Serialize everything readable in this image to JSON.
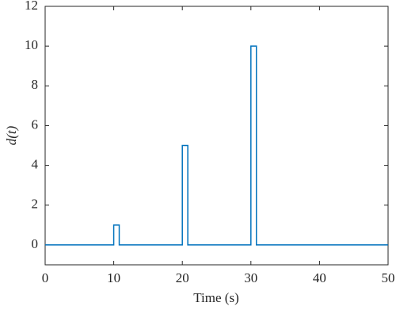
{
  "chart_data": {
    "type": "line",
    "x_label": "Time (s)",
    "y_label": "d(t)",
    "x": [
      0,
      10,
      10,
      10.8,
      10.8,
      20,
      20,
      20.8,
      20.8,
      30,
      30,
      30.8,
      30.8,
      50
    ],
    "series": [
      {
        "color": "#0072BD",
        "values": [
          0,
          0,
          1,
          1,
          0,
          0,
          5,
          5,
          0,
          0,
          10,
          10,
          0,
          0
        ]
      }
    ],
    "xlim": [
      0,
      50
    ],
    "xticks": [
      0,
      10,
      20,
      30,
      40,
      50
    ],
    "ylim": [
      -1,
      12
    ],
    "yticks": [
      0,
      2,
      4,
      6,
      8,
      10,
      12
    ],
    "grid": false
  }
}
